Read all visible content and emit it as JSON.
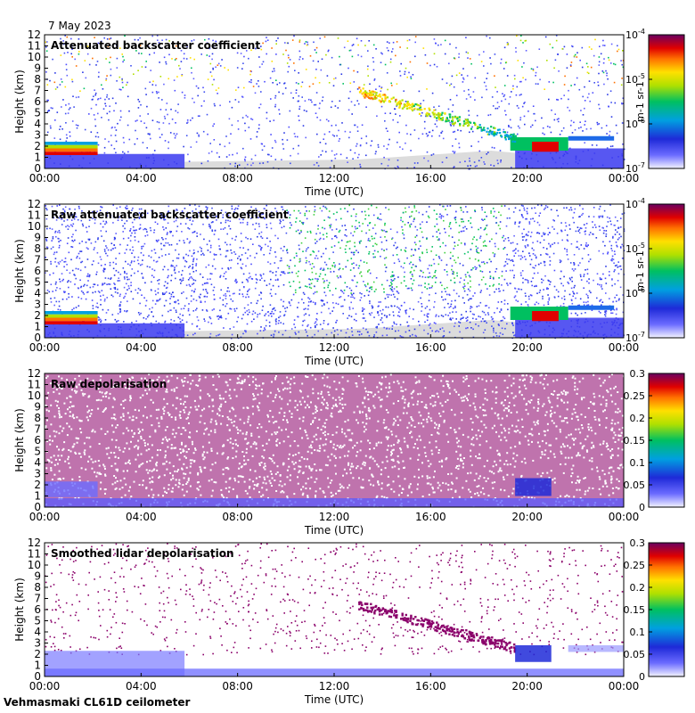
{
  "date_label": "7 May 2023",
  "footer": "Vehmasmaki CL61D ceilometer",
  "colors": {
    "background": "#ffffff",
    "clear_air": "#dcdcdc",
    "frame": "#000000"
  },
  "chart_data": [
    {
      "type": "heatmap",
      "title": "Attenuated backscatter coefficient",
      "xlabel": "Time (UTC)",
      "ylabel": "Height (km)",
      "xlim": [
        0,
        24
      ],
      "ylim": [
        0,
        12
      ],
      "x_ticks": [
        "00:00",
        "04:00",
        "08:00",
        "12:00",
        "16:00",
        "20:00",
        "00:00"
      ],
      "y_ticks": [
        "0",
        "1",
        "2",
        "3",
        "4",
        "5",
        "6",
        "7",
        "8",
        "9",
        "10",
        "11",
        "12"
      ],
      "colorbar": {
        "scale": "log",
        "range": [
          1e-07,
          0.0001
        ],
        "tick_labels": [
          "10-7",
          "10-6",
          "10-5",
          "10-4"
        ],
        "unit": "m-1 sr-1"
      },
      "features": [
        {
          "name": "boundary layer",
          "t_start": 0,
          "t_end": 2.2,
          "h_low": 1.2,
          "h_high": 2.4,
          "intensity": "high"
        },
        {
          "name": "elevated layer",
          "t_start": 19.3,
          "t_end": 23.7,
          "h_low": 1.0,
          "h_high": 3.0,
          "intensity": "high"
        },
        {
          "name": "descending cloud",
          "t_start": 13.0,
          "t_end": 19.5,
          "h_high_start": 7.0,
          "h_high_end": 3.0,
          "intensity": "medium"
        }
      ]
    },
    {
      "type": "heatmap",
      "title": "Raw attenuated backscatter coefficient",
      "xlabel": "Time (UTC)",
      "ylabel": "Height (km)",
      "xlim": [
        0,
        24
      ],
      "ylim": [
        0,
        12
      ],
      "x_ticks": [
        "00:00",
        "04:00",
        "08:00",
        "12:00",
        "16:00",
        "20:00",
        "00:00"
      ],
      "y_ticks": [
        "0",
        "1",
        "2",
        "3",
        "4",
        "5",
        "6",
        "7",
        "8",
        "9",
        "10",
        "11",
        "12"
      ],
      "colorbar": {
        "scale": "log",
        "range": [
          1e-07,
          0.0001
        ],
        "tick_labels": [
          "10-7",
          "10-6",
          "10-5",
          "10-4"
        ],
        "unit": "m-1 sr-1"
      }
    },
    {
      "type": "heatmap",
      "title": "Raw depolarisation",
      "xlabel": "Time (UTC)",
      "ylabel": "Height (km)",
      "xlim": [
        0,
        24
      ],
      "ylim": [
        0,
        12
      ],
      "x_ticks": [
        "00:00",
        "04:00",
        "08:00",
        "12:00",
        "16:00",
        "20:00",
        "00:00"
      ],
      "y_ticks": [
        "0",
        "1",
        "2",
        "3",
        "4",
        "5",
        "6",
        "7",
        "8",
        "9",
        "10",
        "11",
        "12"
      ],
      "colorbar": {
        "scale": "linear",
        "range": [
          0,
          0.3
        ],
        "tick_labels": [
          "0",
          "0.05",
          "0.1",
          "0.15",
          "0.2",
          "0.25",
          "0.3"
        ]
      }
    },
    {
      "type": "heatmap",
      "title": "Smoothed lidar depolarisation",
      "xlabel": "Time (UTC)",
      "ylabel": "Height (km)",
      "xlim": [
        0,
        24
      ],
      "ylim": [
        0,
        12
      ],
      "x_ticks": [
        "00:00",
        "04:00",
        "08:00",
        "12:00",
        "16:00",
        "20:00",
        "00:00"
      ],
      "y_ticks": [
        "0",
        "1",
        "2",
        "3",
        "4",
        "5",
        "6",
        "7",
        "8",
        "9",
        "10",
        "11",
        "12"
      ],
      "colorbar": {
        "scale": "linear",
        "range": [
          0,
          0.3
        ],
        "tick_labels": [
          "0",
          "0.05",
          "0.1",
          "0.15",
          "0.2",
          "0.25",
          "0.3"
        ]
      }
    }
  ]
}
